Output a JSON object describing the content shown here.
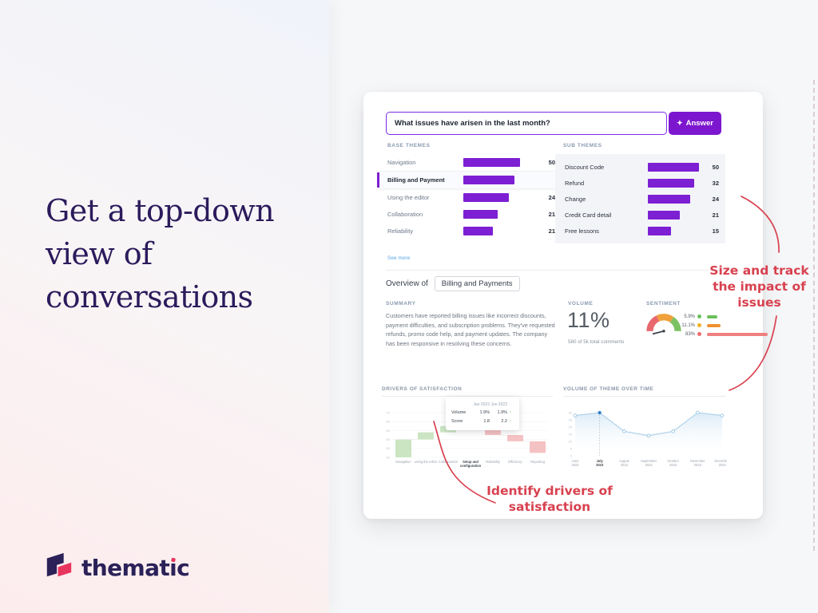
{
  "page": {
    "headline": "Get a top-down view of conversations",
    "brand": "thematic"
  },
  "annotations": {
    "issues": "Size and track the impact of issues",
    "drivers": "Identify drivers of satisfaction"
  },
  "colors": {
    "purple": "#7d1fd3",
    "accent_red": "#d8414f",
    "link_blue": "#58a5e7",
    "navy": "#2b1b5c",
    "positive_green": "#6cbf5a",
    "neutral_orange": "#f09030",
    "negative_salmon": "#f07f7f"
  },
  "dashboard": {
    "query": {
      "value": "What issues have arisen in the last month?",
      "button_label": "Answer",
      "button_icon": "sparkle-icon"
    },
    "base_themes": {
      "label": "BASE THEMES",
      "see_more": "See more",
      "items": [
        {
          "name": "Navigation",
          "count": "50",
          "bar_pct": 100,
          "selected": false
        },
        {
          "name": "Billing and Payment",
          "count": "",
          "bar_pct": 90,
          "selected": true
        },
        {
          "name": "Using the editor",
          "count": "24",
          "bar_pct": 80,
          "selected": false
        },
        {
          "name": "Collaboration",
          "count": "21",
          "bar_pct": 61,
          "selected": false
        },
        {
          "name": "Reliability",
          "count": "21",
          "bar_pct": 52,
          "selected": false
        }
      ]
    },
    "sub_themes": {
      "label": "SUB THEMES",
      "items": [
        {
          "name": "Discount Code",
          "count": "50",
          "bar_pct": 100
        },
        {
          "name": "Refund",
          "count": "32",
          "bar_pct": 91
        },
        {
          "name": "Change",
          "count": "24",
          "bar_pct": 83
        },
        {
          "name": "Credit Card detail",
          "count": "21",
          "bar_pct": 63
        },
        {
          "name": "Free lessons",
          "count": "15",
          "bar_pct": 45
        }
      ]
    },
    "overview": {
      "prefix": "Overview of",
      "selected_theme": "Billing and Payments"
    },
    "summary": {
      "label": "SUMMARY",
      "text": "Customers have reported billing issues like incorrect discounts, payment difficulties, and subscription problems. They've requested refunds, promo code help, and payment updates. The company has been responsive in resolving these concerns."
    },
    "volume": {
      "label": "VOLUME",
      "value": "11%",
      "caption": "580 of 5k total comments"
    },
    "sentiment": {
      "label": "SENTIMENT",
      "legend": [
        {
          "pct": "5.9%",
          "tone": "positive",
          "dot_color": "#6cbf5a",
          "bar_color": "#6cbf5a",
          "bar_len": 13
        },
        {
          "pct": "11.1%",
          "tone": "neutral",
          "dot_color": "#f2b01e",
          "bar_color": "#f09030",
          "bar_len": 17
        },
        {
          "pct": "83%",
          "tone": "negative",
          "dot_color": "#ee6a6a",
          "bar_color": "#f07f7f",
          "bar_len": 76
        }
      ]
    }
  },
  "chart_data": [
    {
      "type": "waterfall",
      "title": "DRIVERS OF SATISFACTION",
      "categories": [
        "Navigation",
        "Using the editor",
        "Collaboration",
        "Setup and configuration",
        "Reliability",
        "Efficiency",
        "Reporting"
      ],
      "segments": [
        {
          "label": "Navigation",
          "start": 20,
          "end": 40,
          "direction": "up"
        },
        {
          "label": "Using the editor",
          "start": 40,
          "end": 48,
          "direction": "up"
        },
        {
          "label": "Collaboration",
          "start": 48,
          "end": 55,
          "direction": "up"
        },
        {
          "label": "Setup and configuration",
          "start": 55,
          "end": 63,
          "direction": "up",
          "emphasis": true
        },
        {
          "label": "Reliability",
          "start": 63,
          "end": 45,
          "direction": "down"
        },
        {
          "label": "Efficiency",
          "start": 45,
          "end": 38,
          "direction": "down"
        },
        {
          "label": "Reporting",
          "start": 38,
          "end": 25,
          "direction": "down"
        }
      ],
      "ylim": [
        20,
        70
      ],
      "yticks": [
        20,
        30,
        40,
        50,
        60,
        70
      ],
      "up_color": "#cbe5c2",
      "emphasis_color": "#79b95f",
      "down_color": "#f5c2c3",
      "tooltip": {
        "columns": [
          "Jan 2023",
          "Jun 2023"
        ],
        "rows": [
          {
            "label": "Volume",
            "values": [
              "1.9%",
              "1.9%"
            ],
            "trend": "up"
          },
          {
            "label": "Score",
            "values": [
              "1.8",
              "2.2"
            ],
            "trend": "up"
          }
        ]
      }
    },
    {
      "type": "line",
      "title": "VOLUME OF THEME OVER TIME",
      "x": [
        "June 2023",
        "July 2023",
        "August 2023",
        "September 2023",
        "October 2023",
        "November 2023",
        "December 2023"
      ],
      "values": [
        28,
        30,
        17,
        14,
        17,
        30,
        28
      ],
      "highlight": "July 2023",
      "ylim": [
        0,
        30
      ],
      "yticks": [
        0,
        5,
        10,
        15,
        20,
        25,
        30
      ],
      "line_color": "#a9cfe9",
      "fill_color": "#d7e9f6",
      "highlight_color": "#2e7fc2",
      "legend_position": "none",
      "grid": false
    }
  ]
}
